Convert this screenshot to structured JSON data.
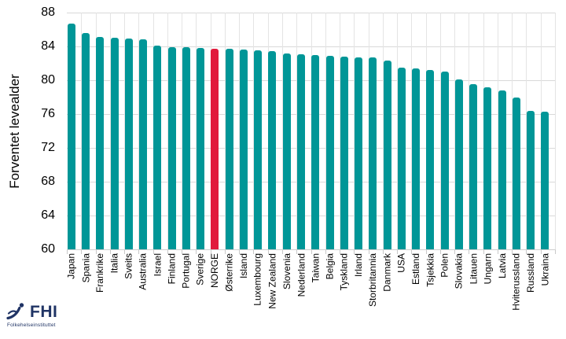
{
  "chart_data": {
    "type": "bar",
    "title": "",
    "xlabel": "",
    "ylabel": "Forventet levealder",
    "ylim": [
      60,
      88
    ],
    "yticks": [
      60,
      64,
      68,
      72,
      76,
      80,
      84,
      88
    ],
    "grid": "horizontal gridlines at each y tick and faint vertical gridlines between categories",
    "legend": "none",
    "bar_color": "#009697",
    "highlight_color": "#E11A3C",
    "highlight_category": "NORGE",
    "categories": [
      "Japan",
      "Spania",
      "Frankrike",
      "Italia",
      "Sveits",
      "Australia",
      "Israel",
      "Finland",
      "Portugal",
      "Sverige",
      "NORGE",
      "Østerrike",
      "Island",
      "Luxembourg",
      "New Zealand",
      "Slovenia",
      "Nederland",
      "Taiwan",
      "Belgia",
      "Tyskland",
      "Irland",
      "Storbritannia",
      "Danmark",
      "USA",
      "Estland",
      "Tsjekkia",
      "Polen",
      "Slovakia",
      "Litauen",
      "Ungarn",
      "Latvia",
      "Hviterussland",
      "Russland",
      "Ukraina"
    ],
    "values": [
      86.7,
      85.6,
      85.1,
      85.0,
      84.9,
      84.8,
      84.1,
      83.9,
      83.9,
      83.8,
      83.7,
      83.7,
      83.6,
      83.5,
      83.4,
      83.2,
      83.1,
      83.0,
      82.9,
      82.8,
      82.7,
      82.7,
      82.3,
      81.5,
      81.4,
      81.2,
      81.0,
      80.1,
      79.5,
      79.2,
      78.8,
      78.0,
      76.4,
      76.3
    ]
  },
  "logo": {
    "name": "FHI",
    "subtitle": "Folkehelseinstituttet",
    "color": "#203465"
  }
}
